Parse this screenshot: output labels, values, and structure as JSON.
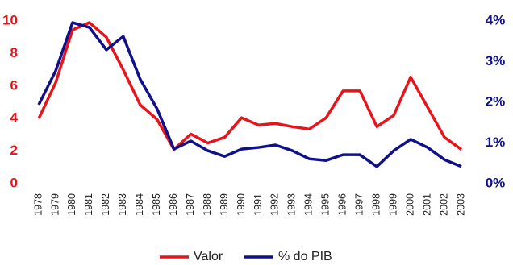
{
  "chart_data": {
    "type": "line",
    "categories": [
      "1978",
      "1979",
      "1980",
      "1981",
      "1982",
      "1983",
      "1984",
      "1985",
      "1986",
      "1987",
      "1988",
      "1989",
      "1990",
      "1991",
      "1992",
      "1993",
      "1994",
      "1995",
      "1996",
      "1997",
      "1998",
      "1999",
      "2000",
      "2001",
      "2002",
      "2003"
    ],
    "series": [
      {
        "name": "Valor",
        "color": "#e8141c",
        "values": [
          4.0,
          6.2,
          9.45,
          9.9,
          9.0,
          7.0,
          4.85,
          3.95,
          2.1,
          3.05,
          2.5,
          2.85,
          4.05,
          3.6,
          3.7,
          3.5,
          3.35,
          4.05,
          5.7,
          5.7,
          3.5,
          4.2,
          6.55,
          4.7,
          2.85,
          2.1
        ]
      },
      {
        "name": "% do PIB",
        "color": "#10108a",
        "axis": "y2",
        "values": [
          1.94,
          2.77,
          3.96,
          3.84,
          3.29,
          3.62,
          2.57,
          1.84,
          0.85,
          1.05,
          0.81,
          0.67,
          0.85,
          0.89,
          0.95,
          0.81,
          0.61,
          0.57,
          0.71,
          0.71,
          0.42,
          0.81,
          1.09,
          0.89,
          0.59,
          0.42
        ]
      }
    ],
    "ylim": [
      0,
      10
    ],
    "yticks": [
      0,
      2,
      4,
      6,
      8,
      10
    ],
    "y2lim": [
      0,
      4
    ],
    "y2ticks": [
      {
        "value": 0,
        "label": "0%"
      },
      {
        "value": 1,
        "label": "1%"
      },
      {
        "value": 2,
        "label": "2%"
      },
      {
        "value": 3,
        "label": "3%"
      },
      {
        "value": 4,
        "label": "4%"
      }
    ],
    "grid": false,
    "legend": "bottom"
  }
}
